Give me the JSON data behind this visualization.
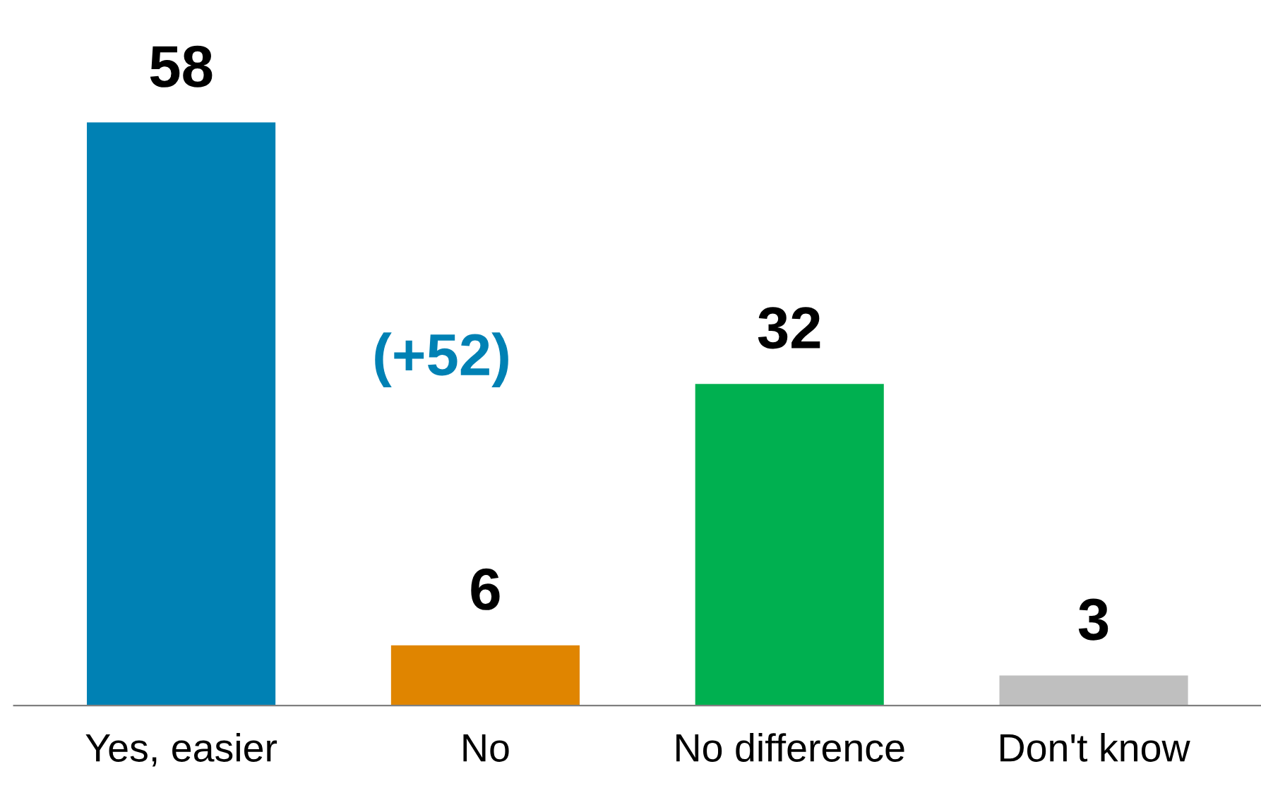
{
  "chart_data": {
    "type": "bar",
    "categories": [
      "Yes, easier",
      "No",
      "No difference",
      "Don't know"
    ],
    "values": [
      58,
      6,
      32,
      3
    ],
    "colors": [
      "#0081b4",
      "#e08500",
      "#00b050",
      "#bfbfbf"
    ],
    "data_labels": true,
    "annotations": [
      "(+52)"
    ],
    "grid": false,
    "legend": false
  }
}
